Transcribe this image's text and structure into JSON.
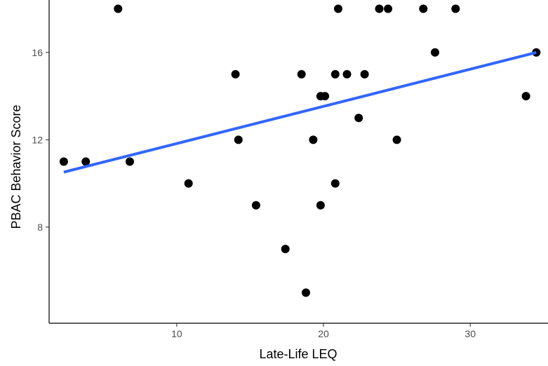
{
  "chart_data": {
    "type": "scatter",
    "title": "",
    "xlabel": "Late-Life LEQ",
    "ylabel": "PBAC Behavior Score",
    "xlim": [
      1.3,
      35.3
    ],
    "ylim": [
      3.6,
      18.4
    ],
    "x_ticks": [
      10,
      20,
      30
    ],
    "x_tick_labels": [
      "10",
      "20",
      "30"
    ],
    "y_ticks": [
      8,
      12,
      16
    ],
    "y_tick_labels": [
      "8",
      "12",
      "16"
    ],
    "grid": false,
    "legend": "none",
    "point_color": "#000000",
    "line_color": "#3366FF",
    "points": [
      {
        "x": 2.3,
        "y": 11
      },
      {
        "x": 3.8,
        "y": 11
      },
      {
        "x": 6.0,
        "y": 18
      },
      {
        "x": 6.8,
        "y": 11
      },
      {
        "x": 10.8,
        "y": 10
      },
      {
        "x": 14.0,
        "y": 15
      },
      {
        "x": 14.2,
        "y": 12
      },
      {
        "x": 15.4,
        "y": 9
      },
      {
        "x": 17.4,
        "y": 7
      },
      {
        "x": 18.5,
        "y": 15
      },
      {
        "x": 18.8,
        "y": 5
      },
      {
        "x": 19.3,
        "y": 12
      },
      {
        "x": 19.8,
        "y": 9
      },
      {
        "x": 19.8,
        "y": 14
      },
      {
        "x": 20.1,
        "y": 14
      },
      {
        "x": 20.8,
        "y": 15
      },
      {
        "x": 20.8,
        "y": 10
      },
      {
        "x": 21.0,
        "y": 18
      },
      {
        "x": 21.6,
        "y": 15
      },
      {
        "x": 22.4,
        "y": 13
      },
      {
        "x": 22.8,
        "y": 15
      },
      {
        "x": 23.8,
        "y": 18
      },
      {
        "x": 24.4,
        "y": 18
      },
      {
        "x": 25.0,
        "y": 12
      },
      {
        "x": 26.8,
        "y": 18
      },
      {
        "x": 27.6,
        "y": 16
      },
      {
        "x": 29.0,
        "y": 18
      },
      {
        "x": 33.8,
        "y": 14
      },
      {
        "x": 34.5,
        "y": 16
      }
    ],
    "regression_line": {
      "x": [
        2.3,
        34.5
      ],
      "y": [
        10.52,
        16.0
      ]
    }
  }
}
